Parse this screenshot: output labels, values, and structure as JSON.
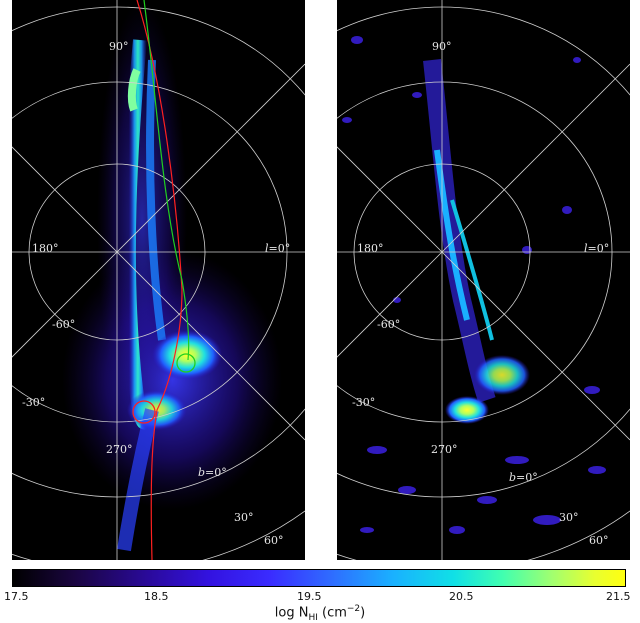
{
  "figure": {
    "panels": [
      {
        "id": "left",
        "labels": {
          "lat_90": "90°",
          "lon_180": "180°",
          "lon_0_var": "l",
          "lon_0_value": "=0°",
          "lat_m60": "-60°",
          "lat_m30": "-30°",
          "lon_270": "270°",
          "b_var": "b",
          "b_value": "=0°",
          "lat_30": "30°",
          "lat_60": "60°"
        }
      },
      {
        "id": "right",
        "labels": {
          "lat_90": "90°",
          "lon_180": "180°",
          "lon_0_var": "l",
          "lon_0_value": "=0°",
          "lat_m60": "-60°",
          "lat_m30": "-30°",
          "lon_270": "270°",
          "b_var": "b",
          "b_value": "=0°",
          "lat_30": "30°",
          "lat_60": "60°"
        }
      }
    ],
    "colorbar": {
      "ticks": [
        "17.5",
        "18.5",
        "19.5",
        "20.5",
        "21.5"
      ],
      "label_main": "log N",
      "label_sub": "HI",
      "label_unit": " (cm",
      "label_exp": "−2",
      "label_close": ")"
    },
    "colors": {
      "grid": "#d0d0d0",
      "orbit_red": "#ff2020",
      "orbit_green": "#20d020",
      "background": "#000000"
    }
  }
}
